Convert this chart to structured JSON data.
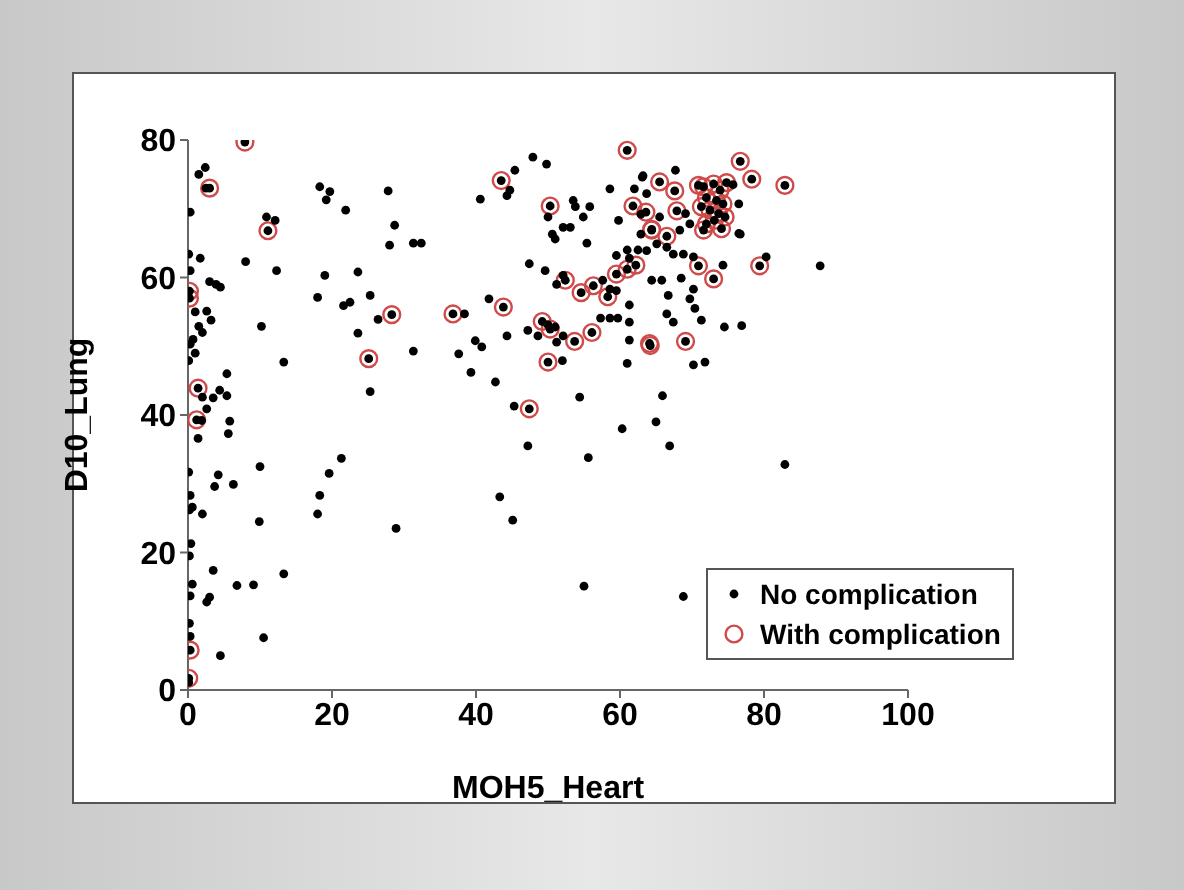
{
  "chart_data": {
    "type": "scatter",
    "xlabel": "MOH5_Heart",
    "ylabel": "D10_Lung",
    "xlim": [
      0,
      100
    ],
    "xticks": [
      0,
      20,
      40,
      60,
      80,
      100
    ],
    "ylim": [
      0,
      80
    ],
    "yticks": [
      0,
      20,
      40,
      60,
      80
    ],
    "grid": false,
    "legend": "bottom right",
    "marker": "circle",
    "series": [
      {
        "name": "No complication",
        "color": "#000000",
        "x": [
          2.4,
          1.5,
          2.5,
          0.3,
          10.9,
          12.1,
          0.1,
          1.7,
          8,
          12.3,
          0.3,
          3,
          3.9,
          4.5,
          1,
          2.6,
          3.2,
          1.5,
          2,
          0.7,
          0.3,
          10.2,
          0.1,
          13.3,
          1,
          5.4,
          2,
          3.5,
          4.4,
          5.4,
          2.6,
          1.9,
          5.8,
          5.6,
          1.4,
          10,
          0.1,
          4.2,
          3.7,
          6.3,
          0.3,
          0.6,
          0.2,
          2,
          9.9,
          0.4,
          0.2,
          3.5,
          13.3,
          6.8,
          9.1,
          0.6,
          0.3,
          2.6,
          3,
          0.2,
          0.3,
          10.5,
          4.5,
          0.1,
          18.3,
          19.2,
          19.7,
          21.9,
          27.8,
          28.7,
          28,
          19,
          23.6,
          18,
          25.3,
          21.6,
          22.5,
          26.4,
          23.6,
          25.3,
          28.9,
          21.3,
          19.6,
          18.3,
          18,
          31.3,
          31.3,
          32.4,
          40.6,
          44.3,
          44.7,
          45.4,
          47.9,
          49.8,
          50,
          50.6,
          51,
          52.1,
          53.1,
          53.5,
          53.8,
          54.9,
          55.8,
          55.4,
          47.4,
          49.6,
          52.1,
          51.2,
          57.6,
          58.6,
          59.5,
          61.3,
          61,
          59.5,
          62.5,
          59.8,
          58.6,
          62.9,
          62,
          63.1,
          62.9,
          41.8,
          38.4,
          44.3,
          39.9,
          40.8,
          37.6,
          39.3,
          42.7,
          45.3,
          47.2,
          47.2,
          48.6,
          50,
          51,
          51.2,
          52.1,
          57.3,
          58.6,
          59.7,
          61.3,
          61.3,
          61.3,
          61,
          52,
          54.4,
          60.3,
          55.6,
          43.3,
          45.1,
          55,
          75.7,
          76.5,
          76.5,
          76.7,
          67.7,
          63.2,
          63.7,
          69.1,
          69.7,
          68.3,
          65.5,
          66.5,
          65.1,
          63.7,
          67.4,
          68.8,
          70.2,
          74.3,
          80.3,
          87.8,
          64.4,
          65.8,
          68.5,
          70.2,
          69.7,
          66.7,
          70.4,
          66.5,
          67.4,
          71.3,
          74.5,
          76.9,
          70.2,
          71.8,
          65.9,
          65,
          66.9,
          82.9,
          68.8,
          3,
          11.1,
          0.2,
          0.2,
          1.4,
          1.2,
          0.3,
          0.1,
          28.3,
          25.1,
          7.9,
          43.5,
          50.3,
          52.4,
          54.6,
          56.3,
          58.3,
          59.5,
          61,
          62.2,
          61,
          61.8,
          63.6,
          64.4,
          36.8,
          43.8,
          47.4,
          49.2,
          50.3,
          53.7,
          56.1,
          64.1,
          50,
          76.7,
          78.3,
          82.9,
          71.6,
          73,
          73.9,
          74.8,
          72,
          73.4,
          74.3,
          71.3,
          72.5,
          73.7,
          74.6,
          72,
          73.1,
          71.6,
          74.1,
          70.9,
          65.5,
          67.6,
          67.9,
          64.4,
          66.5,
          70.9,
          73,
          79.4,
          69.1,
          64.2
        ],
        "values": [
          76,
          75,
          73,
          69.5,
          68.8,
          68.3,
          63.4,
          62.8,
          62.3,
          61,
          61,
          59.4,
          59,
          58.6,
          55,
          55.1,
          53.8,
          52.9,
          52,
          51,
          50.3,
          52.9,
          47.9,
          47.7,
          49,
          46,
          42.6,
          42.5,
          43.6,
          42.8,
          40.9,
          39.2,
          39.1,
          37.3,
          36.6,
          32.5,
          31.7,
          31.3,
          29.6,
          29.9,
          28.3,
          26.6,
          26.2,
          25.6,
          24.5,
          21.3,
          19.5,
          17.4,
          16.9,
          15.2,
          15.3,
          15.4,
          13.7,
          12.8,
          13.5,
          9.7,
          7.8,
          7.6,
          5,
          1.1,
          73.2,
          71.3,
          72.5,
          69.8,
          72.6,
          67.6,
          64.7,
          60.3,
          60.8,
          57.1,
          57.4,
          55.9,
          56.4,
          53.9,
          51.9,
          43.4,
          23.5,
          33.7,
          31.5,
          28.3,
          25.6,
          49.3,
          65,
          65,
          71.4,
          71.9,
          72.7,
          75.6,
          77.5,
          76.5,
          68.8,
          66.3,
          65.6,
          67.3,
          67.3,
          71.2,
          70.3,
          68.8,
          70.3,
          65,
          62,
          61,
          60.3,
          59,
          59.6,
          58.3,
          58.1,
          62.8,
          64,
          63.2,
          64,
          68.3,
          72.9,
          69.2,
          72.9,
          74.6,
          66.3,
          56.9,
          54.7,
          51.5,
          50.8,
          49.9,
          48.9,
          46.2,
          44.8,
          41.3,
          35.5,
          52.3,
          51.5,
          53.1,
          52.8,
          50.6,
          51.5,
          54.1,
          54.1,
          54.1,
          53.5,
          56,
          50.9,
          47.5,
          47.9,
          42.6,
          38,
          33.8,
          28.1,
          24.7,
          15.1,
          73.5,
          70.7,
          66.4,
          66.3,
          75.6,
          74.8,
          72.2,
          69.3,
          67.8,
          66.9,
          68.8,
          64.4,
          64.9,
          63.9,
          63.4,
          63.4,
          63,
          61.8,
          63,
          61.7,
          59.6,
          59.6,
          59.9,
          58.3,
          56.9,
          57.4,
          55.5,
          54.7,
          53.5,
          53.8,
          52.8,
          53,
          47.3,
          47.7,
          42.8,
          39,
          35.5,
          32.8,
          13.6,
          73,
          66.8,
          58,
          57,
          43.9,
          39.3,
          5.8,
          1.7,
          54.6,
          48.2,
          79.7,
          74.1,
          70.4,
          59.6,
          57.8,
          58.8,
          57.2,
          60.5,
          61.2,
          61.8,
          78.5,
          70.4,
          69.5,
          67,
          54.7,
          55.7,
          40.9,
          53.6,
          52.5,
          50.7,
          52,
          50.4,
          47.7,
          76.9,
          74.3,
          73.4,
          73.2,
          73.6,
          72.7,
          73.8,
          71.6,
          71.2,
          70.7,
          70.3,
          69.8,
          69.3,
          68.8,
          67.8,
          68.3,
          66.9,
          67.1,
          73.4,
          73.9,
          72.6,
          69.7,
          66.9,
          66,
          61.7,
          59.8,
          61.7,
          50.7,
          50.1
        ]
      },
      {
        "name": "With complication",
        "color": "#d04a4a",
        "x": [
          3,
          11.1,
          0.2,
          0.2,
          1.4,
          1.2,
          0.3,
          0.1,
          28.3,
          25.1,
          7.9,
          43.5,
          50.3,
          52.4,
          54.6,
          56.3,
          58.3,
          59.5,
          61,
          62.2,
          61,
          61.8,
          63.6,
          64.4,
          36.8,
          43.8,
          47.4,
          49.2,
          50.3,
          53.7,
          56.1,
          64.1,
          50,
          76.7,
          78.3,
          82.9,
          71.6,
          73,
          73.9,
          74.8,
          72,
          73.4,
          74.3,
          71.3,
          72.5,
          73.7,
          74.6,
          72,
          73.1,
          71.6,
          74.1,
          70.9,
          65.5,
          67.6,
          67.9,
          64.4,
          66.5,
          70.9,
          73,
          79.4,
          69.1,
          64.2
        ],
        "values": [
          73,
          66.8,
          58,
          57,
          43.9,
          39.3,
          5.8,
          1.7,
          54.6,
          48.2,
          79.7,
          74.1,
          70.4,
          59.6,
          57.8,
          58.8,
          57.2,
          60.5,
          61.2,
          61.8,
          78.5,
          70.4,
          69.5,
          67,
          54.7,
          55.7,
          40.9,
          53.6,
          52.5,
          50.7,
          52,
          50.4,
          47.7,
          76.9,
          74.3,
          73.4,
          73.2,
          73.6,
          72.7,
          73.8,
          71.6,
          71.2,
          70.7,
          70.3,
          69.8,
          69.3,
          68.8,
          67.8,
          68.3,
          66.9,
          67.1,
          73.4,
          73.9,
          72.6,
          69.7,
          66.9,
          66,
          61.7,
          59.8,
          61.7,
          50.7,
          50.1
        ]
      }
    ]
  }
}
